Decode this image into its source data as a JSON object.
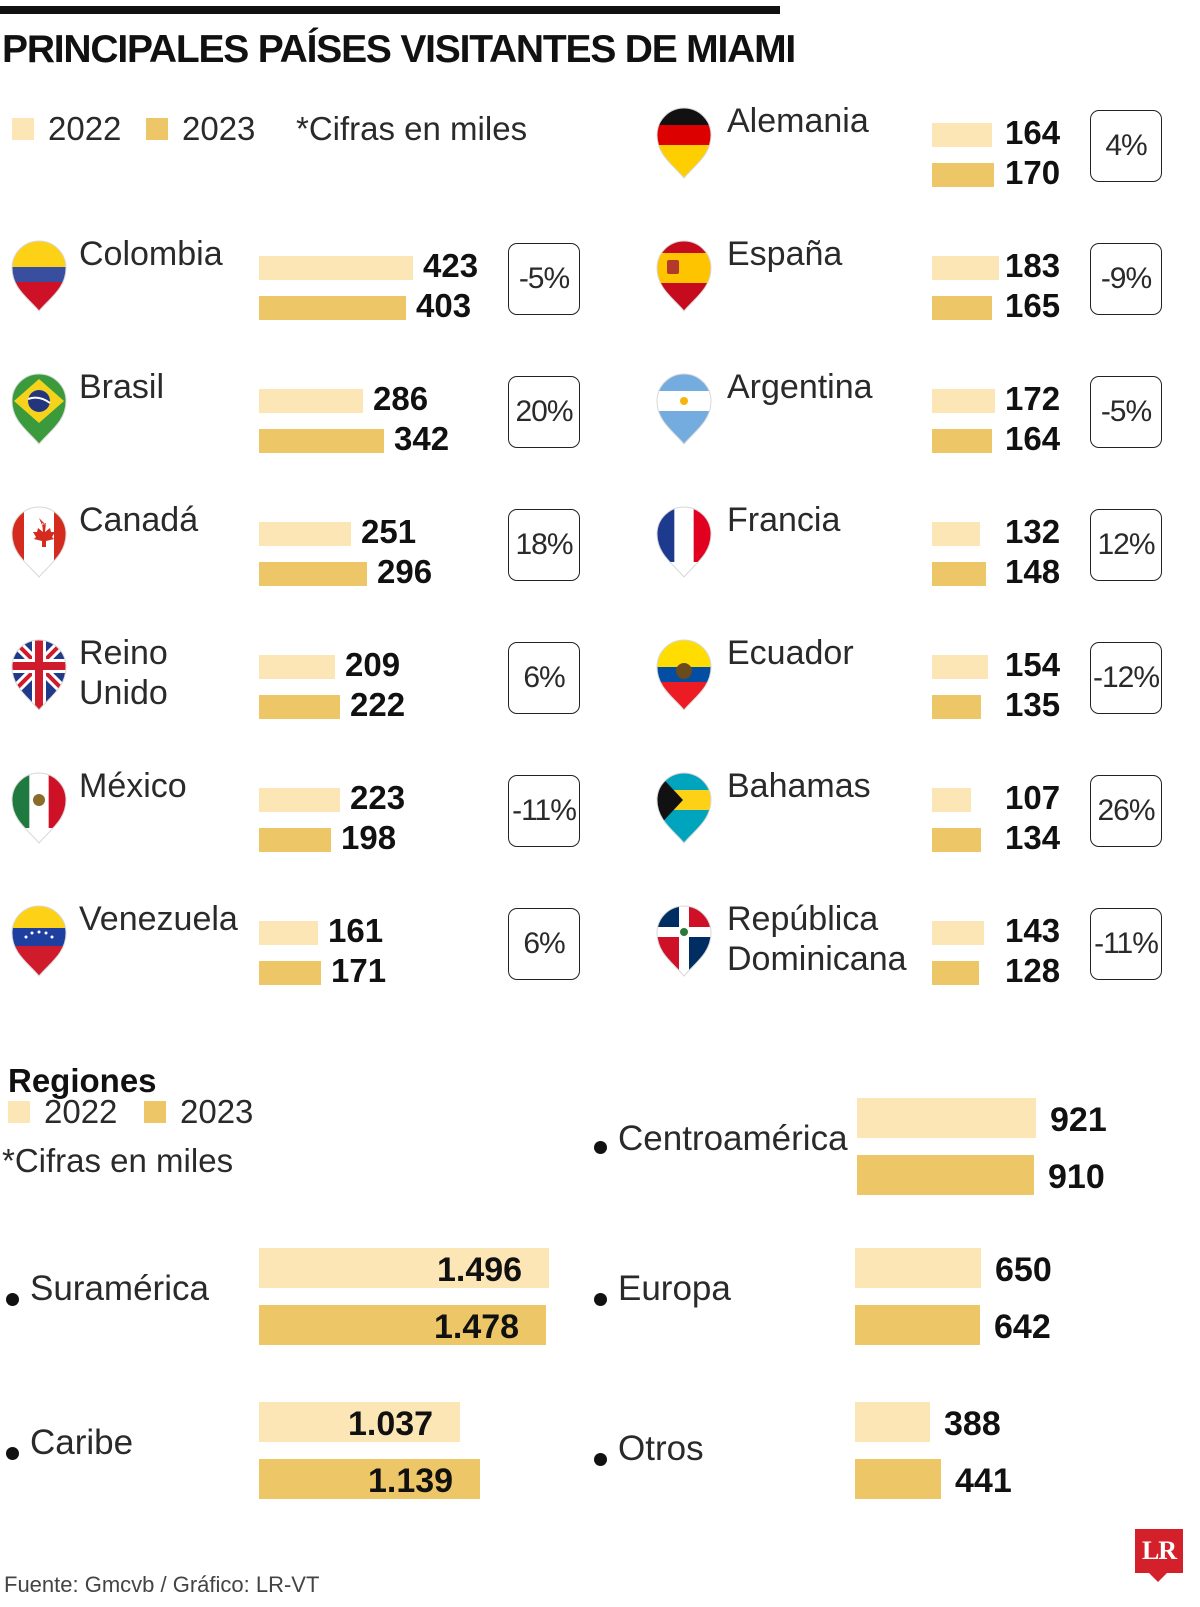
{
  "colors": {
    "y2022": "#fce6b6",
    "y2023": "#ecc667",
    "text": "#1a1a1a"
  },
  "title": "PRINCIPALES PAÍSES VISITANTES DE MIAMI",
  "legend": {
    "label_2022": "2022",
    "label_2023": "2023",
    "note": "*Cifras en miles"
  },
  "chart_data": [
    {
      "type": "bar",
      "title": "PRINCIPALES PAÍSES VISITANTES DE MIAMI",
      "unit_note": "*Cifras en miles",
      "series_names": [
        "2022",
        "2023"
      ],
      "categories": [
        {
          "name": "Colombia",
          "flag": "colombia-flag-icon",
          "v2022": 423,
          "v2023": 403,
          "label2022": "423",
          "label2023": "403",
          "pct": "-5%"
        },
        {
          "name": "Brasil",
          "flag": "brazil-flag-icon",
          "v2022": 286,
          "v2023": 342,
          "label2022": "286",
          "label2023": "342",
          "pct": "20%"
        },
        {
          "name": "Canadá",
          "flag": "canada-flag-icon",
          "v2022": 251,
          "v2023": 296,
          "label2022": "251",
          "label2023": "296",
          "pct": "18%"
        },
        {
          "name": "Reino Unido",
          "flag": "uk-flag-icon",
          "v2022": 209,
          "v2023": 222,
          "label2022": "209",
          "label2023": "222",
          "pct": "6%"
        },
        {
          "name": "México",
          "flag": "mexico-flag-icon",
          "v2022": 223,
          "v2023": 198,
          "label2022": "223",
          "label2023": "198",
          "pct": "-11%"
        },
        {
          "name": "Venezuela",
          "flag": "venezuela-flag-icon",
          "v2022": 161,
          "v2023": 171,
          "label2022": "161",
          "label2023": "171",
          "pct": "6%"
        },
        {
          "name": "Alemania",
          "flag": "germany-flag-icon",
          "v2022": 164,
          "v2023": 170,
          "label2022": "164",
          "label2023": "170",
          "pct": "4%"
        },
        {
          "name": "España",
          "flag": "spain-flag-icon",
          "v2022": 183,
          "v2023": 165,
          "label2022": "183",
          "label2023": "165",
          "pct": "-9%"
        },
        {
          "name": "Argentina",
          "flag": "argentina-flag-icon",
          "v2022": 172,
          "v2023": 164,
          "label2022": "172",
          "label2023": "164",
          "pct": "-5%"
        },
        {
          "name": "Francia",
          "flag": "france-flag-icon",
          "v2022": 132,
          "v2023": 148,
          "label2022": "132",
          "label2023": "148",
          "pct": "12%"
        },
        {
          "name": "Ecuador",
          "flag": "ecuador-flag-icon",
          "v2022": 154,
          "v2023": 135,
          "label2022": "154",
          "label2023": "135",
          "pct": "-12%"
        },
        {
          "name": "Bahamas",
          "flag": "bahamas-flag-icon",
          "v2022": 107,
          "v2023": 134,
          "label2022": "107",
          "label2023": "134",
          "pct": "26%"
        },
        {
          "name": "República Dominicana",
          "flag": "dominican-republic-flag-icon",
          "v2022": 143,
          "v2023": 128,
          "label2022": "143",
          "label2023": "128",
          "pct": "-11%"
        }
      ]
    },
    {
      "type": "bar",
      "title": "Regiones",
      "unit_note": "*Cifras en miles",
      "series_names": [
        "2022",
        "2023"
      ],
      "categories": [
        {
          "name": "Suramérica",
          "v2022": 1496,
          "v2023": 1478,
          "label2022": "1.496",
          "label2023": "1.478"
        },
        {
          "name": "Caribe",
          "v2022": 1037,
          "v2023": 1139,
          "label2022": "1.037",
          "label2023": "1.139"
        },
        {
          "name": "Centroamérica",
          "v2022": 921,
          "v2023": 910,
          "label2022": "921",
          "label2023": "910"
        },
        {
          "name": "Europa",
          "v2022": 650,
          "v2023": 642,
          "label2022": "650",
          "label2023": "642"
        },
        {
          "name": "Otros",
          "v2022": 388,
          "v2023": 441,
          "label2022": "388",
          "label2023": "441"
        }
      ]
    }
  ],
  "regions": {
    "title": "Regiones",
    "label_2022": "2022",
    "label_2023": "2023",
    "note": "*Cifras en miles"
  },
  "footer": {
    "source": "Fuente: Gmcvb / Gráfico: LR-VT",
    "logo": "LR"
  }
}
